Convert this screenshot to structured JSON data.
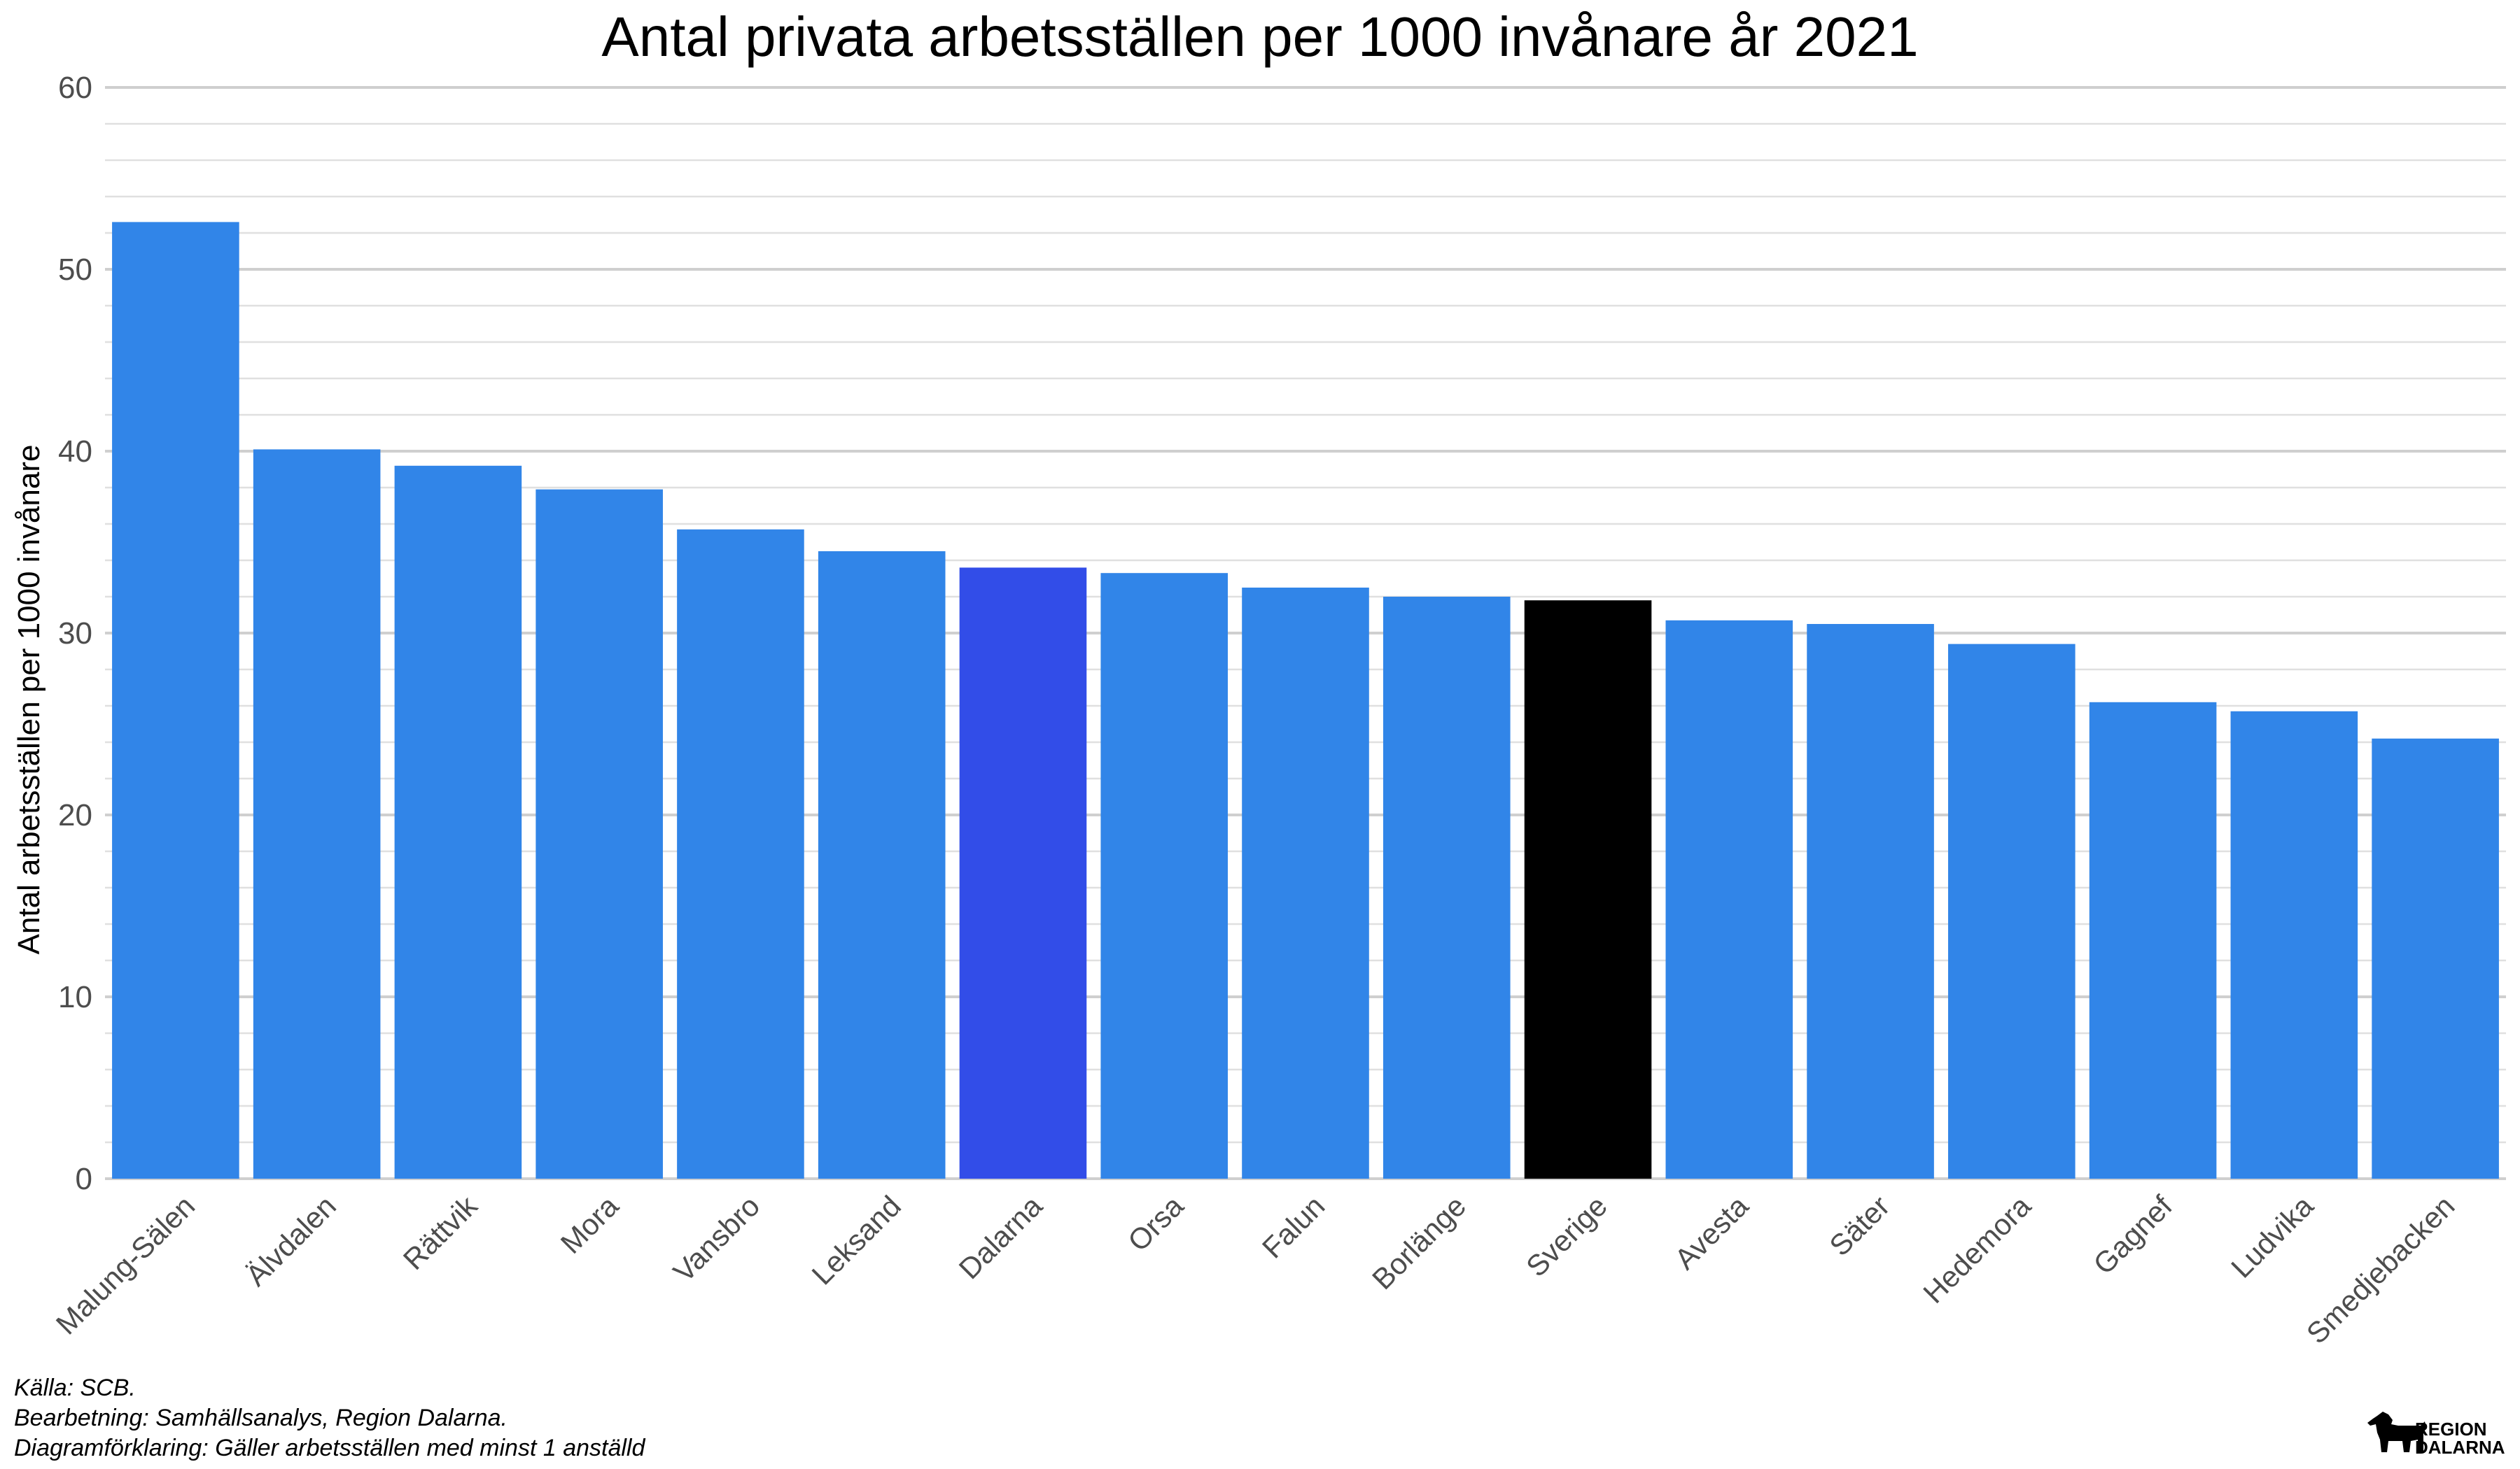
{
  "chart_data": {
    "type": "bar",
    "title": "Antal privata arbetsställen per 1000 invånare år 2021",
    "xlabel": "",
    "ylabel": "Antal arbetsställen per 1000 invånare",
    "ylim": [
      0,
      60
    ],
    "yticks": [
      0,
      10,
      20,
      30,
      40,
      50,
      60
    ],
    "grid": true,
    "categories": [
      "Malung-Sälen",
      "Älvdalen",
      "Rättvik",
      "Mora",
      "Vansbro",
      "Leksand",
      "Dalarna",
      "Orsa",
      "Falun",
      "Borlänge",
      "Sverige",
      "Avesta",
      "Säter",
      "Hedemora",
      "Gagnef",
      "Ludvika",
      "Smedjebacken"
    ],
    "values": [
      52.6,
      40.1,
      39.2,
      37.9,
      35.7,
      34.5,
      33.6,
      33.3,
      32.5,
      32.0,
      31.8,
      30.7,
      30.5,
      29.4,
      26.2,
      25.7,
      24.2
    ],
    "colors": {
      "default": "#3185E8",
      "Dalarna": "#324DE8",
      "Sverige": "#000000"
    },
    "caption": [
      "Källa: SCB.",
      "Bearbetning: Samhällsanalys, Region Dalarna.",
      "Diagramförklaring: Gäller arbetsställen med minst 1 anställd"
    ]
  },
  "logo": {
    "line1": "REGION",
    "line2": "DALARNA",
    "icon": "dala-horse-icon"
  }
}
